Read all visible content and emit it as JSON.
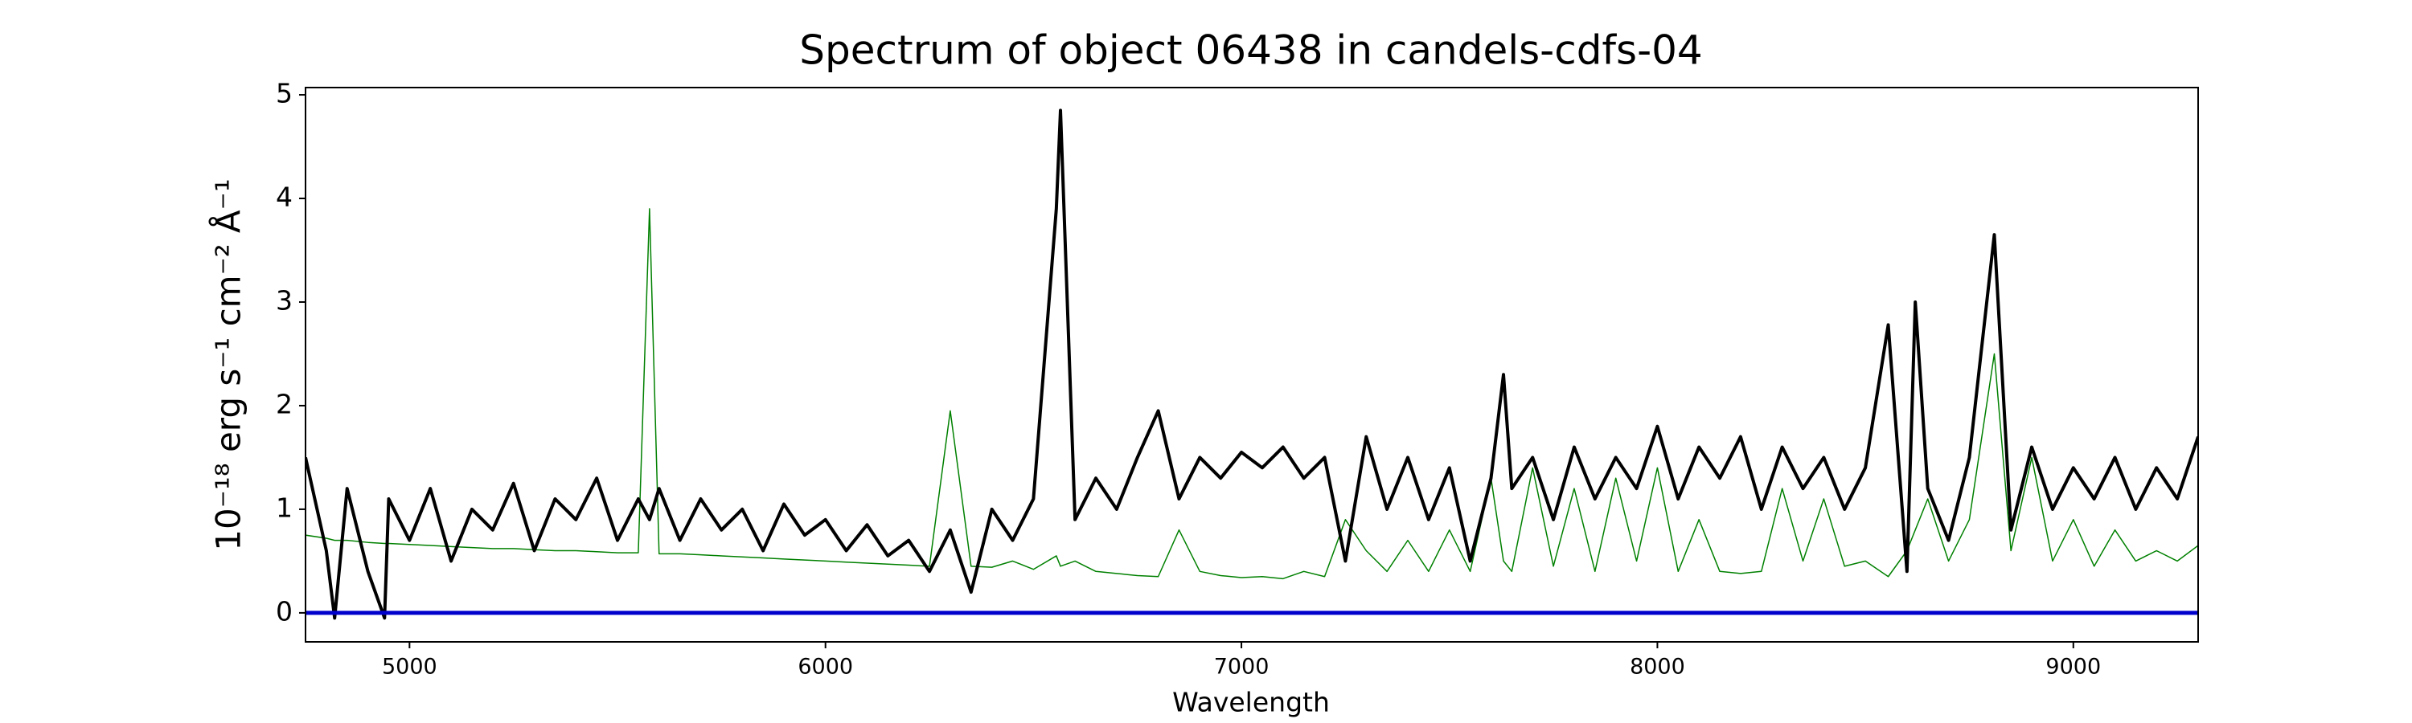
{
  "chart_data": {
    "type": "line",
    "title": "Spectrum of object 06438 in candels-cdfs-04",
    "xlabel": "Wavelength",
    "ylabel": "10⁻¹⁸ erg s⁻¹ cm⁻² Å⁻¹",
    "x": [
      4750,
      4800,
      4820,
      4850,
      4900,
      4940,
      4950,
      5000,
      5050,
      5100,
      5150,
      5200,
      5250,
      5300,
      5350,
      5400,
      5450,
      5500,
      5550,
      5577,
      5600,
      5650,
      5700,
      5750,
      5800,
      5850,
      5900,
      5950,
      6000,
      6050,
      6100,
      6150,
      6200,
      6250,
      6300,
      6350,
      6400,
      6450,
      6500,
      6555,
      6565,
      6600,
      6650,
      6700,
      6750,
      6800,
      6850,
      6900,
      6950,
      7000,
      7050,
      7100,
      7150,
      7200,
      7250,
      7300,
      7350,
      7400,
      7450,
      7500,
      7550,
      7600,
      7630,
      7650,
      7700,
      7750,
      7800,
      7850,
      7900,
      7950,
      8000,
      8050,
      8100,
      8150,
      8200,
      8250,
      8300,
      8350,
      8400,
      8450,
      8500,
      8555,
      8600,
      8620,
      8650,
      8700,
      8750,
      8810,
      8850,
      8900,
      8950,
      9000,
      9050,
      9100,
      9150,
      9200,
      9250,
      9300
    ],
    "series": [
      {
        "color": "#008000",
        "width": 1.5,
        "values": [
          0.75,
          0.72,
          0.7,
          0.7,
          0.68,
          0.67,
          0.67,
          0.66,
          0.65,
          0.64,
          0.63,
          0.62,
          0.62,
          0.61,
          0.6,
          0.6,
          0.59,
          0.58,
          0.58,
          3.9,
          0.57,
          0.57,
          0.56,
          0.55,
          0.54,
          0.53,
          0.52,
          0.51,
          0.5,
          0.49,
          0.48,
          0.47,
          0.46,
          0.45,
          1.95,
          0.45,
          0.44,
          0.5,
          0.42,
          0.55,
          0.45,
          0.5,
          0.4,
          0.38,
          0.36,
          0.35,
          0.8,
          0.4,
          0.36,
          0.34,
          0.35,
          0.33,
          0.4,
          0.35,
          0.9,
          0.6,
          0.4,
          0.7,
          0.4,
          0.8,
          0.4,
          1.3,
          0.5,
          0.4,
          1.4,
          0.45,
          1.2,
          0.4,
          1.3,
          0.5,
          1.4,
          0.4,
          0.9,
          0.4,
          0.38,
          0.4,
          1.2,
          0.5,
          1.1,
          0.45,
          0.5,
          0.35,
          0.6,
          0.8,
          1.1,
          0.5,
          0.9,
          2.5,
          0.6,
          1.5,
          0.5,
          0.9,
          0.45,
          0.8,
          0.5,
          0.6,
          0.5,
          0.65
        ]
      },
      {
        "color": "#000000",
        "width": 4,
        "values": [
          1.5,
          0.6,
          -0.05,
          1.2,
          0.4,
          -0.05,
          1.1,
          0.7,
          1.2,
          0.5,
          1.0,
          0.8,
          1.25,
          0.6,
          1.1,
          0.9,
          1.3,
          0.7,
          1.1,
          0.9,
          1.2,
          0.7,
          1.1,
          0.8,
          1.0,
          0.6,
          1.05,
          0.75,
          0.9,
          0.6,
          0.85,
          0.55,
          0.7,
          0.4,
          0.8,
          0.2,
          1.0,
          0.7,
          1.1,
          3.9,
          4.85,
          0.9,
          1.3,
          1.0,
          1.5,
          1.95,
          1.1,
          1.5,
          1.3,
          1.55,
          1.4,
          1.6,
          1.3,
          1.5,
          0.5,
          1.7,
          1.0,
          1.5,
          0.9,
          1.4,
          0.5,
          1.3,
          2.3,
          1.2,
          1.5,
          0.9,
          1.6,
          1.1,
          1.5,
          1.2,
          1.8,
          1.1,
          1.6,
          1.3,
          1.7,
          1.0,
          1.6,
          1.2,
          1.5,
          1.0,
          1.4,
          2.78,
          0.4,
          3.0,
          1.2,
          0.7,
          1.5,
          3.65,
          0.8,
          1.6,
          1.0,
          1.4,
          1.1,
          1.5,
          1.0,
          1.4,
          1.1,
          1.7
        ]
      }
    ],
    "zero_line": {
      "value": 0,
      "color": "#0000cc"
    },
    "xlim": [
      4750,
      9300
    ],
    "xticks": [
      5000,
      6000,
      7000,
      8000,
      9000
    ],
    "ylim": [
      -0.28,
      5.07
    ],
    "yticks": [
      0,
      1,
      2,
      3,
      4,
      5
    ]
  }
}
